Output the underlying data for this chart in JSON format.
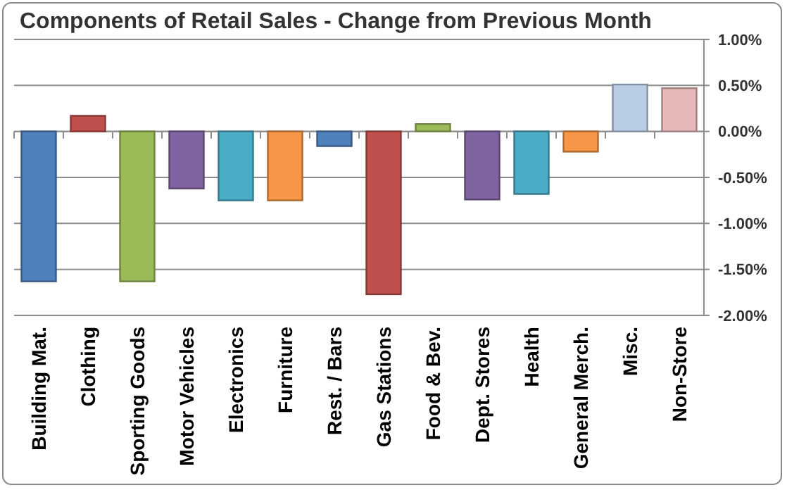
{
  "chart_data": {
    "type": "bar",
    "title": "Components of Retail Sales - Change from Previous Month",
    "categories": [
      "Building Mat.",
      "Clothing",
      "Sporting Goods",
      "Motor Vehicles",
      "Electronics",
      "Furniture",
      "Rest. / Bars",
      "Gas Stations",
      "Food & Bev.",
      "Dept. Stores",
      "Health",
      "General Merch.",
      "Misc.",
      "Non-Store"
    ],
    "values": [
      -1.63,
      0.17,
      -1.63,
      -0.62,
      -0.75,
      -0.75,
      -0.16,
      -1.77,
      0.08,
      -0.74,
      -0.68,
      -0.22,
      0.51,
      0.47
    ],
    "colors": [
      "#4f81bd",
      "#c0504d",
      "#9bbb59",
      "#8064a2",
      "#4bacc6",
      "#f79646",
      "#4f81bd",
      "#c0504d",
      "#9bbb59",
      "#8064a2",
      "#4bacc6",
      "#f79646",
      "#b9cde5",
      "#e6b9b8"
    ],
    "ylim": [
      -2,
      1
    ],
    "yticks": [
      {
        "value": -2,
        "label": "-2.00%"
      },
      {
        "value": -1.5,
        "label": "-1.50%"
      },
      {
        "value": -1,
        "label": "-1.00%"
      },
      {
        "value": -0.5,
        "label": "-0.50%"
      },
      {
        "value": 0,
        "label": "0.00%"
      },
      {
        "value": 0.5,
        "label": "0.50%"
      },
      {
        "value": 1,
        "label": "1.00%"
      }
    ],
    "grid": "y"
  }
}
